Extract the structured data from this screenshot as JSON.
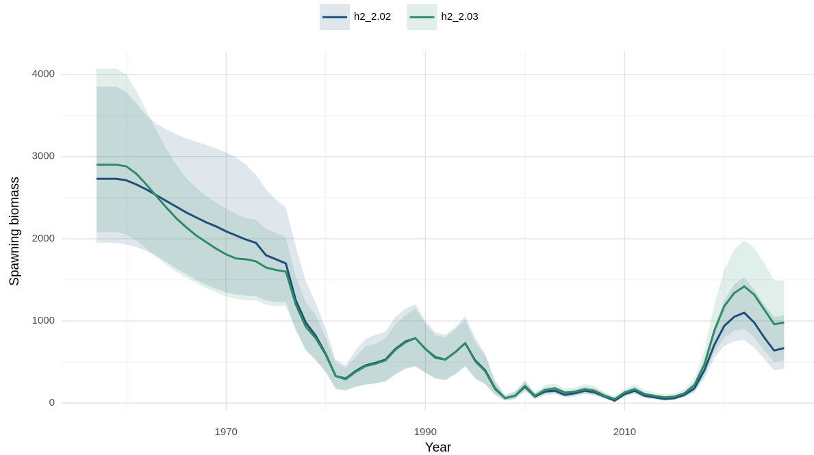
{
  "chart_data": {
    "type": "line",
    "x_label": "Year",
    "y_label": "Spawning biomass",
    "x": [
      1957,
      1958,
      1959,
      1960,
      1961,
      1962,
      1963,
      1964,
      1965,
      1966,
      1967,
      1968,
      1969,
      1970,
      1971,
      1972,
      1973,
      1974,
      1975,
      1976,
      1977,
      1978,
      1979,
      1980,
      1981,
      1982,
      1983,
      1984,
      1985,
      1986,
      1987,
      1988,
      1989,
      1990,
      1991,
      1992,
      1993,
      1994,
      1995,
      1996,
      1997,
      1998,
      1999,
      2000,
      2001,
      2002,
      2003,
      2004,
      2005,
      2006,
      2007,
      2008,
      2009,
      2010,
      2011,
      2012,
      2013,
      2014,
      2015,
      2016,
      2017,
      2018,
      2019,
      2020,
      2021,
      2022,
      2023,
      2024,
      2025,
      2026
    ],
    "series": [
      {
        "name": "h2_2.02",
        "color": "#1f4e79",
        "values": [
          2730,
          2730,
          2730,
          2710,
          2660,
          2600,
          2530,
          2460,
          2390,
          2320,
          2260,
          2200,
          2150,
          2090,
          2040,
          1990,
          1950,
          1800,
          1750,
          1700,
          1250,
          980,
          820,
          600,
          330,
          300,
          390,
          460,
          490,
          530,
          660,
          750,
          790,
          660,
          560,
          530,
          620,
          730,
          520,
          400,
          180,
          60,
          90,
          200,
          80,
          140,
          150,
          100,
          120,
          150,
          130,
          80,
          30,
          110,
          150,
          90,
          70,
          50,
          60,
          100,
          180,
          400,
          710,
          940,
          1050,
          1100,
          980,
          800,
          640,
          670
        ],
        "lower": [
          1950,
          1950,
          1950,
          1930,
          1900,
          1850,
          1790,
          1720,
          1640,
          1570,
          1500,
          1440,
          1390,
          1350,
          1320,
          1310,
          1300,
          1250,
          1230,
          1230,
          900,
          650,
          530,
          380,
          180,
          160,
          200,
          230,
          240,
          270,
          350,
          420,
          450,
          370,
          300,
          280,
          350,
          450,
          300,
          230,
          100,
          30,
          50,
          150,
          50,
          100,
          110,
          70,
          80,
          110,
          90,
          50,
          15,
          80,
          110,
          60,
          45,
          30,
          40,
          70,
          130,
          300,
          550,
          700,
          750,
          770,
          680,
          540,
          400,
          420
        ],
        "upper": [
          3850,
          3850,
          3850,
          3780,
          3650,
          3500,
          3400,
          3330,
          3270,
          3220,
          3180,
          3140,
          3100,
          3050,
          2990,
          2900,
          2780,
          2600,
          2480,
          2380,
          1900,
          1480,
          1220,
          900,
          530,
          460,
          640,
          780,
          830,
          870,
          1050,
          1150,
          1200,
          1000,
          860,
          830,
          920,
          1060,
          790,
          600,
          280,
          100,
          140,
          260,
          120,
          190,
          200,
          140,
          160,
          200,
          180,
          120,
          60,
          150,
          200,
          130,
          100,
          80,
          90,
          140,
          250,
          530,
          930,
          1250,
          1450,
          1530,
          1380,
          1200,
          1050,
          1070
        ]
      },
      {
        "name": "h2_2.03",
        "color": "#2e8b67",
        "values": [
          2900,
          2900,
          2900,
          2880,
          2790,
          2660,
          2520,
          2380,
          2250,
          2140,
          2040,
          1960,
          1880,
          1810,
          1760,
          1750,
          1725,
          1650,
          1620,
          1600,
          1200,
          930,
          790,
          590,
          330,
          290,
          380,
          450,
          480,
          520,
          650,
          740,
          790,
          660,
          550,
          530,
          620,
          730,
          510,
          390,
          170,
          60,
          90,
          210,
          90,
          160,
          180,
          130,
          140,
          170,
          150,
          90,
          50,
          130,
          170,
          110,
          90,
          70,
          80,
          120,
          220,
          470,
          880,
          1180,
          1340,
          1420,
          1320,
          1140,
          960,
          980
        ],
        "lower": [
          2080,
          2080,
          2080,
          2050,
          1980,
          1880,
          1780,
          1680,
          1600,
          1530,
          1460,
          1400,
          1350,
          1300,
          1270,
          1250,
          1250,
          1200,
          1180,
          1180,
          880,
          640,
          520,
          380,
          170,
          150,
          200,
          220,
          240,
          260,
          350,
          420,
          450,
          370,
          300,
          280,
          350,
          450,
          300,
          230,
          100,
          30,
          50,
          150,
          50,
          110,
          120,
          80,
          90,
          120,
          100,
          55,
          25,
          90,
          120,
          70,
          55,
          40,
          50,
          80,
          150,
          330,
          620,
          800,
          880,
          900,
          800,
          640,
          500,
          520
        ],
        "upper": [
          4070,
          4070,
          4070,
          4000,
          3800,
          3560,
          3320,
          3100,
          2900,
          2740,
          2620,
          2520,
          2440,
          2370,
          2300,
          2250,
          2230,
          2120,
          2070,
          2020,
          1530,
          1230,
          1070,
          800,
          490,
          430,
          560,
          690,
          720,
          790,
          960,
          1070,
          1150,
          970,
          820,
          800,
          900,
          1010,
          740,
          580,
          250,
          90,
          140,
          280,
          130,
          220,
          240,
          180,
          190,
          230,
          210,
          130,
          80,
          170,
          230,
          160,
          130,
          110,
          120,
          170,
          300,
          640,
          1200,
          1620,
          1870,
          1980,
          1890,
          1700,
          1490,
          1490
        ]
      }
    ],
    "xlim": [
      1953.5,
      2029
    ],
    "ylim": [
      -90,
      4280
    ],
    "xticks": [
      1970,
      1990,
      2010
    ],
    "yticks": [
      0,
      1000,
      2000,
      3000,
      4000
    ],
    "x_minor_ticks": [
      1960,
      1980,
      2000,
      2020
    ],
    "y_minor_ticks": [
      500,
      1500,
      2500,
      3500
    ],
    "grid": true,
    "legend": "top"
  }
}
